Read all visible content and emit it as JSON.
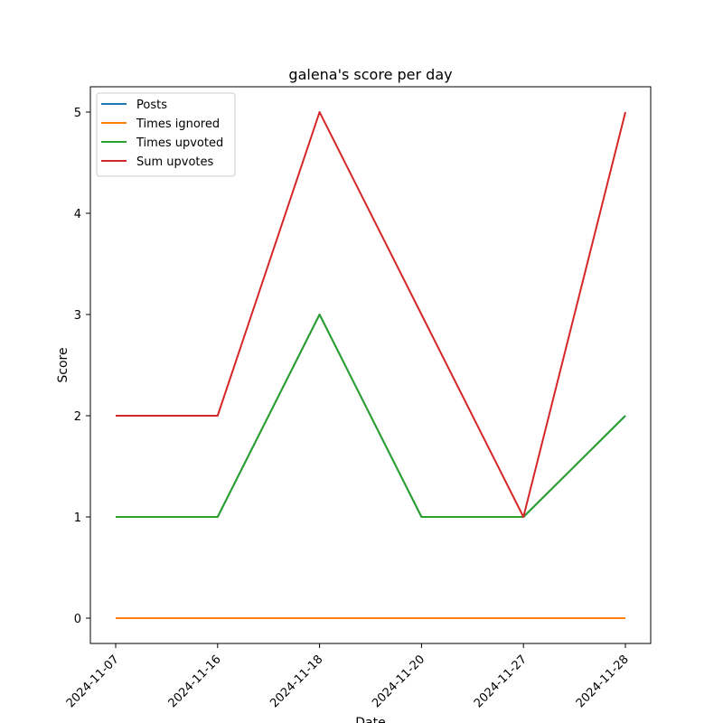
{
  "chart_data": {
    "type": "line",
    "title": "galena's score per day",
    "xlabel": "Date",
    "ylabel": "Score",
    "categories": [
      "2024-11-07",
      "2024-11-16",
      "2024-11-18",
      "2024-11-20",
      "2024-11-27",
      "2024-11-28"
    ],
    "ylim": [
      -0.25,
      5.25
    ],
    "yticks": [
      0,
      1,
      2,
      3,
      4,
      5
    ],
    "grid": false,
    "legend_position": "upper-left",
    "series": [
      {
        "name": "Posts",
        "color": "#1f77b4",
        "values": [
          1,
          1,
          3,
          1,
          1,
          2
        ]
      },
      {
        "name": "Times ignored",
        "color": "#ff7f0e",
        "values": [
          0,
          0,
          0,
          0,
          0,
          0
        ]
      },
      {
        "name": "Times upvoted",
        "color": "#2ca02c",
        "values": [
          1,
          1,
          3,
          1,
          1,
          2
        ]
      },
      {
        "name": "Sum upvotes",
        "color": "#d62728",
        "values": [
          2,
          2,
          5,
          3,
          1,
          5
        ]
      }
    ]
  }
}
